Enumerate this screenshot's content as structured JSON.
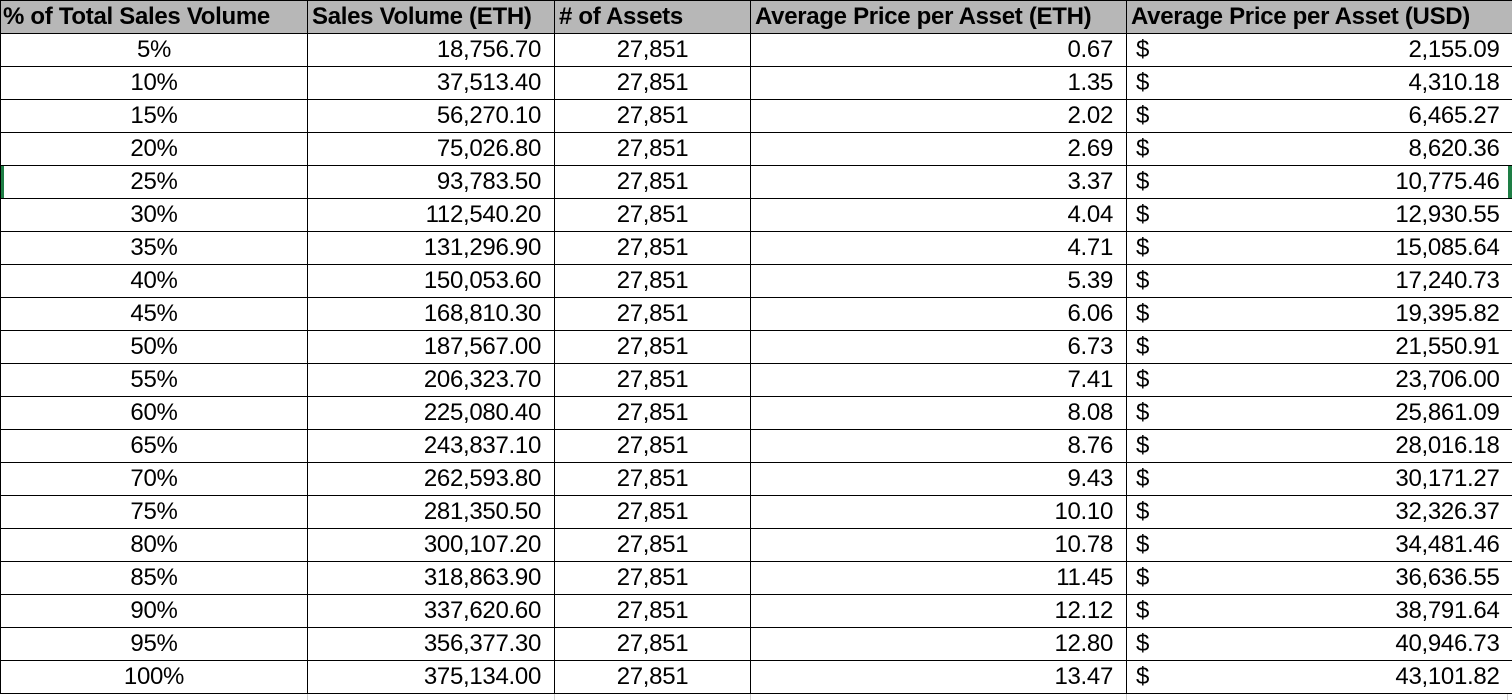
{
  "table": {
    "columns": [
      "% of Total Sales Volume",
      "Sales Volume (ETH)",
      "# of Assets",
      "Average Price per Asset (ETH)",
      "Average Price per Asset (USD)"
    ],
    "currency_symbol": "$",
    "rows": [
      {
        "percent": "5%",
        "sales_volume_eth": "18,756.70",
        "num_assets": "27,851",
        "avg_price_eth": "0.67",
        "avg_price_usd": "2,155.09"
      },
      {
        "percent": "10%",
        "sales_volume_eth": "37,513.40",
        "num_assets": "27,851",
        "avg_price_eth": "1.35",
        "avg_price_usd": "4,310.18"
      },
      {
        "percent": "15%",
        "sales_volume_eth": "56,270.10",
        "num_assets": "27,851",
        "avg_price_eth": "2.02",
        "avg_price_usd": "6,465.27"
      },
      {
        "percent": "20%",
        "sales_volume_eth": "75,026.80",
        "num_assets": "27,851",
        "avg_price_eth": "2.69",
        "avg_price_usd": "8,620.36"
      },
      {
        "percent": "25%",
        "sales_volume_eth": "93,783.50",
        "num_assets": "27,851",
        "avg_price_eth": "3.37",
        "avg_price_usd": "10,775.46"
      },
      {
        "percent": "30%",
        "sales_volume_eth": "112,540.20",
        "num_assets": "27,851",
        "avg_price_eth": "4.04",
        "avg_price_usd": "12,930.55"
      },
      {
        "percent": "35%",
        "sales_volume_eth": "131,296.90",
        "num_assets": "27,851",
        "avg_price_eth": "4.71",
        "avg_price_usd": "15,085.64"
      },
      {
        "percent": "40%",
        "sales_volume_eth": "150,053.60",
        "num_assets": "27,851",
        "avg_price_eth": "5.39",
        "avg_price_usd": "17,240.73"
      },
      {
        "percent": "45%",
        "sales_volume_eth": "168,810.30",
        "num_assets": "27,851",
        "avg_price_eth": "6.06",
        "avg_price_usd": "19,395.82"
      },
      {
        "percent": "50%",
        "sales_volume_eth": "187,567.00",
        "num_assets": "27,851",
        "avg_price_eth": "6.73",
        "avg_price_usd": "21,550.91"
      },
      {
        "percent": "55%",
        "sales_volume_eth": "206,323.70",
        "num_assets": "27,851",
        "avg_price_eth": "7.41",
        "avg_price_usd": "23,706.00"
      },
      {
        "percent": "60%",
        "sales_volume_eth": "225,080.40",
        "num_assets": "27,851",
        "avg_price_eth": "8.08",
        "avg_price_usd": "25,861.09"
      },
      {
        "percent": "65%",
        "sales_volume_eth": "243,837.10",
        "num_assets": "27,851",
        "avg_price_eth": "8.76",
        "avg_price_usd": "28,016.18"
      },
      {
        "percent": "70%",
        "sales_volume_eth": "262,593.80",
        "num_assets": "27,851",
        "avg_price_eth": "9.43",
        "avg_price_usd": "30,171.27"
      },
      {
        "percent": "75%",
        "sales_volume_eth": "281,350.50",
        "num_assets": "27,851",
        "avg_price_eth": "10.10",
        "avg_price_usd": "32,326.37"
      },
      {
        "percent": "80%",
        "sales_volume_eth": "300,107.20",
        "num_assets": "27,851",
        "avg_price_eth": "10.78",
        "avg_price_usd": "34,481.46"
      },
      {
        "percent": "85%",
        "sales_volume_eth": "318,863.90",
        "num_assets": "27,851",
        "avg_price_eth": "11.45",
        "avg_price_usd": "36,636.55"
      },
      {
        "percent": "90%",
        "sales_volume_eth": "337,620.60",
        "num_assets": "27,851",
        "avg_price_eth": "12.12",
        "avg_price_usd": "38,791.64"
      },
      {
        "percent": "95%",
        "sales_volume_eth": "356,377.30",
        "num_assets": "27,851",
        "avg_price_eth": "12.80",
        "avg_price_usd": "40,946.73"
      },
      {
        "percent": "100%",
        "sales_volume_eth": "375,134.00",
        "num_assets": "27,851",
        "avg_price_eth": "13.47",
        "avg_price_usd": "43,101.82"
      }
    ]
  },
  "selection": {
    "selected_row_percent": "25%"
  },
  "colors": {
    "header_bg": "#b7b7b7",
    "cell_border": "#000000",
    "selection_green": "#1e7e45",
    "faint_gridline": "#cfcfcf",
    "cell_bg": "#ffffff"
  }
}
